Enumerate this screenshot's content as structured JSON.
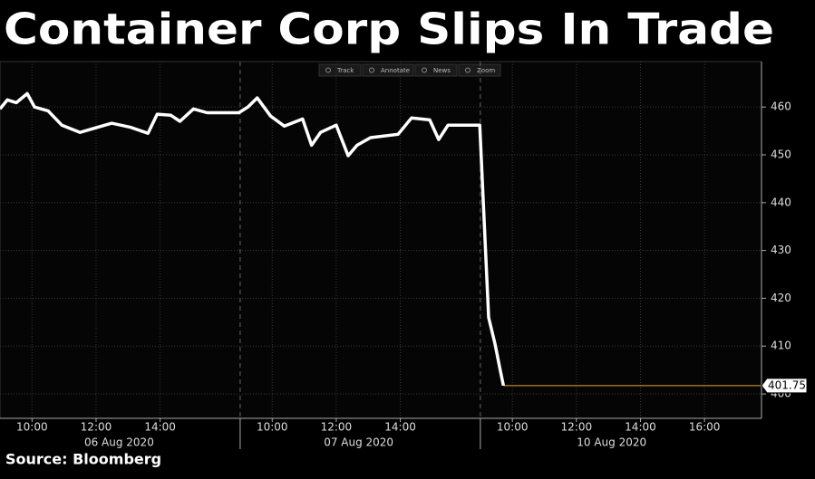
{
  "chart_data": {
    "type": "line",
    "title": "Container Corp Slips In Trade",
    "source": "Source: Bloomberg",
    "toolbar": [
      "Track",
      "Annotate",
      "News",
      "Zoom"
    ],
    "x": [
      0,
      0.23,
      0.51,
      0.85,
      1.08,
      1.5,
      1.93,
      2.5,
      3.06,
      3.49,
      4.06,
      4.62,
      4.91,
      5.33,
      5.62,
      6.04,
      6.47,
      7.46,
      7.74,
      8.03,
      8.45,
      8.88,
      9.45,
      9.73,
      10.01,
      10.5,
      10.87,
      11.15,
      11.57,
      12.43,
      12.85,
      13.42,
      13.7,
      13.99,
      14.98,
      15.26,
      15.46,
      15.6,
      15.72
    ],
    "values": [
      459.6,
      461.5,
      460.9,
      462.8,
      460,
      459.2,
      456.2,
      454.7,
      455.8,
      456.6,
      455.8,
      454.5,
      458.5,
      458.3,
      457,
      459.6,
      458.8,
      458.8,
      460,
      461.9,
      458.1,
      456,
      457.5,
      452,
      454.7,
      456.2,
      449.8,
      452,
      453.6,
      454.3,
      457.7,
      457.3,
      453.2,
      456.2,
      456.2,
      416,
      410.4,
      405.6,
      401.75
    ],
    "color": "#ffffff",
    "last_value_color": "#e8a33a",
    "xlim": [
      0,
      23.78
    ],
    "ylim": [
      394.9,
      469.5
    ],
    "yticks": [
      400,
      410,
      420,
      430,
      440,
      450,
      460
    ],
    "xticks": [
      {
        "value": 1,
        "label": "10:00"
      },
      {
        "value": 3,
        "label": "12:00"
      },
      {
        "value": 5,
        "label": "14:00"
      },
      {
        "value": 8.5,
        "label": "10:00"
      },
      {
        "value": 10.5,
        "label": "12:00"
      },
      {
        "value": 12.5,
        "label": "14:00"
      },
      {
        "value": 16,
        "label": "10:00"
      },
      {
        "value": 18,
        "label": "12:00"
      },
      {
        "value": 20,
        "label": "14:00"
      },
      {
        "value": 22,
        "label": "16:00"
      }
    ],
    "day_breaks": [
      7.5,
      15
    ],
    "day_labels": [
      {
        "value": 3.72,
        "label": "06 Aug 2020"
      },
      {
        "value": 11.2,
        "label": "07 Aug 2020"
      },
      {
        "value": 19.1,
        "label": "10 Aug 2020"
      }
    ],
    "grid": true
  }
}
